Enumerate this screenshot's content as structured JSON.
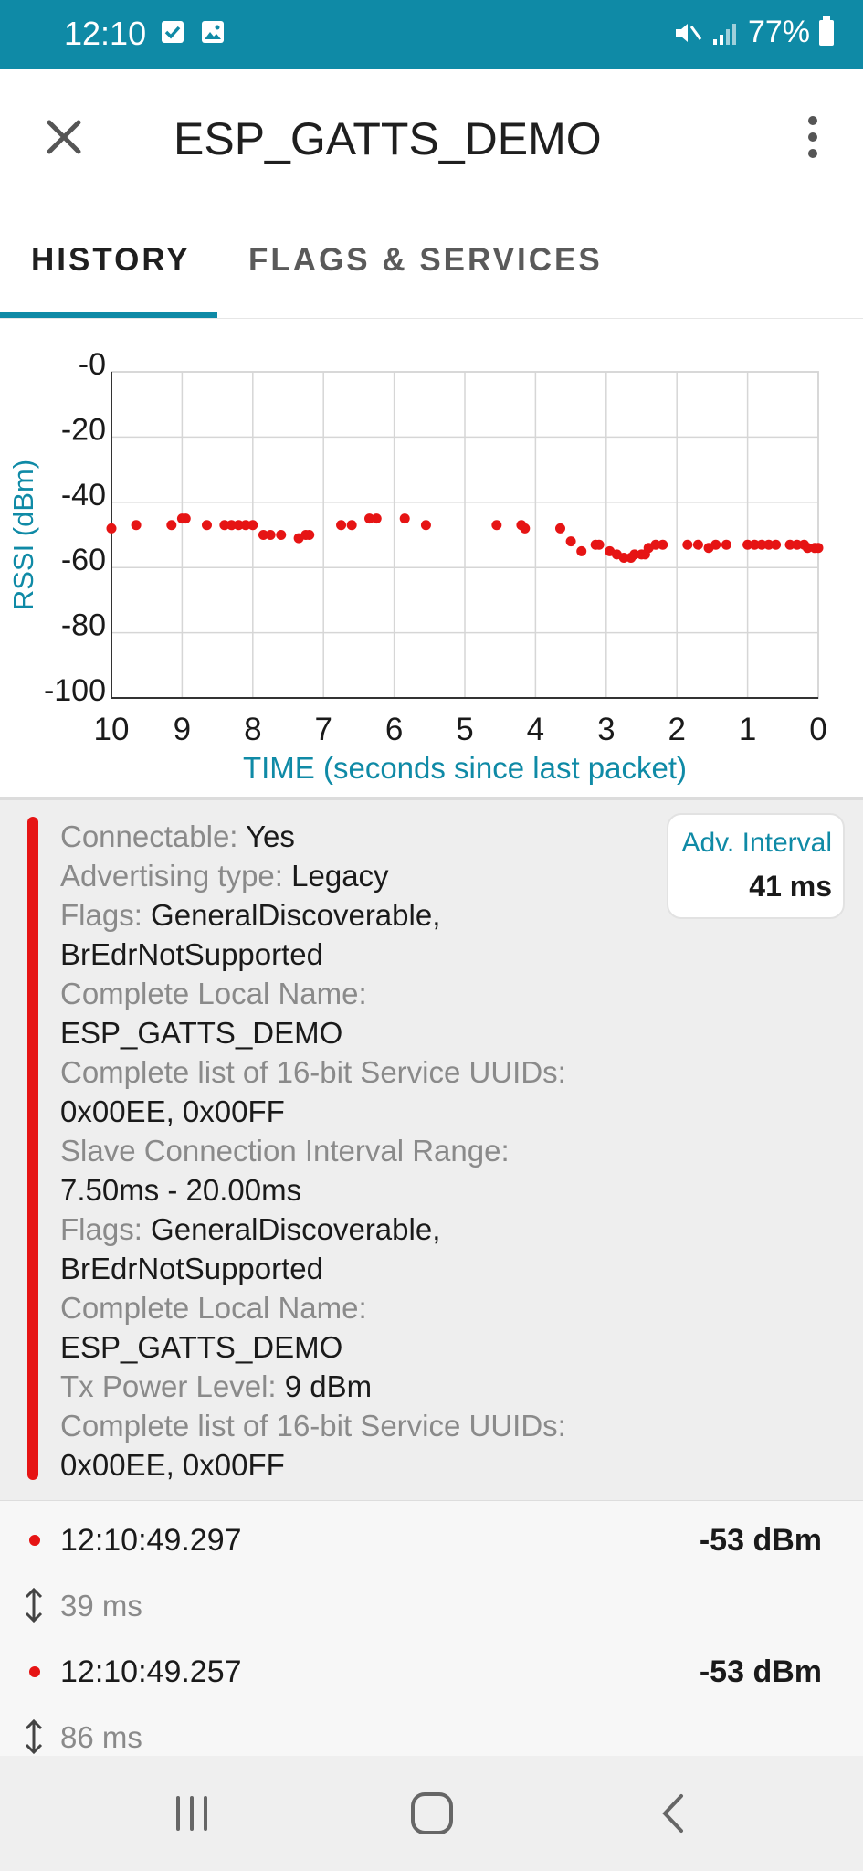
{
  "status_bar": {
    "time": "12:10",
    "battery": "77%",
    "icons": [
      "checkbox-notification-icon",
      "image-notification-icon",
      "mute-icon",
      "signal-icon",
      "battery-icon"
    ]
  },
  "app_bar": {
    "title": "ESP_GATTS_DEMO",
    "close_icon": "close-icon",
    "menu_icon": "more-vert-icon"
  },
  "tabs": [
    {
      "label": "HISTORY",
      "active": true
    },
    {
      "label": "FLAGS & SERVICES",
      "active": false
    }
  ],
  "colors": {
    "accent": "#0f8aa6",
    "signal_red": "#e61414",
    "label_gray": "#8a8a8a",
    "card_bg": "#eeeeee"
  },
  "chart_data": {
    "type": "scatter",
    "xlabel": "TIME (seconds since last packet)",
    "ylabel": "RSSI (dBm)",
    "xlim": [
      10,
      0
    ],
    "ylim": [
      -100,
      0
    ],
    "x_ticks": [
      "10",
      "9",
      "8",
      "7",
      "6",
      "5",
      "4",
      "3",
      "2",
      "1",
      "0"
    ],
    "y_ticks": [
      "-0",
      "-20",
      "-40",
      "-60",
      "-80",
      "-100"
    ],
    "grid": true,
    "series": [
      {
        "color": "#e61414",
        "points": [
          [
            10.0,
            -48
          ],
          [
            9.65,
            -47
          ],
          [
            9.15,
            -47
          ],
          [
            9.0,
            -45
          ],
          [
            8.95,
            -45
          ],
          [
            8.65,
            -47
          ],
          [
            8.4,
            -47
          ],
          [
            8.3,
            -47
          ],
          [
            8.2,
            -47
          ],
          [
            8.1,
            -47
          ],
          [
            8.0,
            -47
          ],
          [
            7.85,
            -50
          ],
          [
            7.75,
            -50
          ],
          [
            7.6,
            -50
          ],
          [
            7.35,
            -51
          ],
          [
            7.25,
            -50
          ],
          [
            7.2,
            -50
          ],
          [
            6.75,
            -47
          ],
          [
            6.6,
            -47
          ],
          [
            6.35,
            -45
          ],
          [
            6.25,
            -45
          ],
          [
            5.85,
            -45
          ],
          [
            5.55,
            -47
          ],
          [
            4.55,
            -47
          ],
          [
            4.2,
            -47
          ],
          [
            4.15,
            -48
          ],
          [
            3.65,
            -48
          ],
          [
            3.5,
            -52
          ],
          [
            3.35,
            -55
          ],
          [
            3.15,
            -53
          ],
          [
            3.1,
            -53
          ],
          [
            2.95,
            -55
          ],
          [
            2.85,
            -56
          ],
          [
            2.75,
            -57
          ],
          [
            2.65,
            -57
          ],
          [
            2.6,
            -56
          ],
          [
            2.5,
            -56
          ],
          [
            2.45,
            -56
          ],
          [
            2.4,
            -54
          ],
          [
            2.3,
            -53
          ],
          [
            2.2,
            -53
          ],
          [
            1.85,
            -53
          ],
          [
            1.7,
            -53
          ],
          [
            1.55,
            -54
          ],
          [
            1.45,
            -53
          ],
          [
            1.3,
            -53
          ],
          [
            1.0,
            -53
          ],
          [
            0.9,
            -53
          ],
          [
            0.8,
            -53
          ],
          [
            0.7,
            -53
          ],
          [
            0.6,
            -53
          ],
          [
            0.4,
            -53
          ],
          [
            0.3,
            -53
          ],
          [
            0.2,
            -53
          ],
          [
            0.15,
            -54
          ],
          [
            0.05,
            -54
          ],
          [
            0.0,
            -54
          ]
        ]
      }
    ]
  },
  "advertisement": {
    "lines": [
      {
        "label": "Connectable:",
        "value": "Yes"
      },
      {
        "label": "Advertising type:",
        "value": "Legacy"
      },
      {
        "label": "Flags:",
        "value": "GeneralDiscoverable,"
      },
      {
        "label": "",
        "value": "BrEdrNotSupported"
      },
      {
        "label": "Complete Local Name:",
        "value": ""
      },
      {
        "label": "",
        "value": "ESP_GATTS_DEMO"
      },
      {
        "label": "Complete list of 16-bit Service UUIDs:",
        "value": ""
      },
      {
        "label": "",
        "value": "0x00EE, 0x00FF"
      },
      {
        "label": "Slave Connection Interval Range:",
        "value": ""
      },
      {
        "label": "",
        "value": "7.50ms - 20.00ms"
      },
      {
        "label": "Flags:",
        "value": "GeneralDiscoverable,"
      },
      {
        "label": "",
        "value": "BrEdrNotSupported"
      },
      {
        "label": "Complete Local Name:",
        "value": ""
      },
      {
        "label": "",
        "value": "ESP_GATTS_DEMO"
      },
      {
        "label": "Tx Power Level:",
        "value": "9 dBm"
      },
      {
        "label": "Complete list of 16-bit Service UUIDs:",
        "value": ""
      },
      {
        "label": "",
        "value": "0x00EE, 0x00FF"
      }
    ],
    "interval_label": "Adv. Interval",
    "interval_value": "41 ms"
  },
  "packets": [
    {
      "time": "12:10:49.297",
      "rssi": "-53 dBm",
      "gap": "39 ms"
    },
    {
      "time": "12:10:49.257",
      "rssi": "-53 dBm",
      "gap": "86 ms"
    }
  ],
  "nav_bar": {
    "icons": [
      "recent-apps-icon",
      "home-icon",
      "back-icon"
    ]
  }
}
